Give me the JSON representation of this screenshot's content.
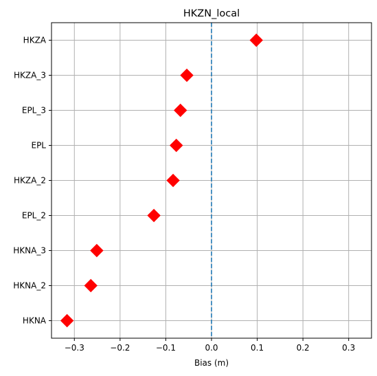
{
  "chart_data": {
    "type": "scatter",
    "title": "HKZN_local",
    "xlabel": "Bias (m)",
    "ylabel": "",
    "xlim": [
      -0.35,
      0.35
    ],
    "xticks": [
      -0.3,
      -0.2,
      -0.1,
      0.0,
      0.1,
      0.2,
      0.3
    ],
    "xtick_labels": [
      "−0.3",
      "−0.2",
      "−0.1",
      "0.0",
      "0.1",
      "0.2",
      "0.3"
    ],
    "categories": [
      "HKZA",
      "HKZA_3",
      "EPL_3",
      "EPL",
      "HKZA_2",
      "EPL_2",
      "HKNA_3",
      "HKNA_2",
      "HKNA"
    ],
    "values": [
      0.098,
      -0.054,
      -0.068,
      -0.077,
      -0.084,
      -0.126,
      -0.251,
      -0.264,
      -0.316
    ],
    "reference_line": {
      "x": 0.0,
      "style": "dashed",
      "color": "#1f77b4"
    },
    "marker": {
      "shape": "diamond",
      "color": "#ff0000"
    },
    "grid": true
  }
}
